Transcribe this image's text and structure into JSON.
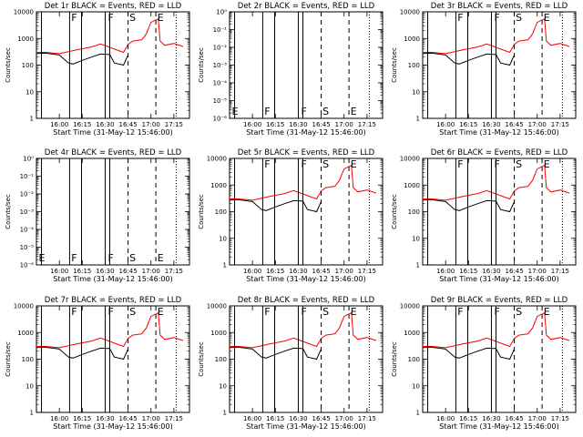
{
  "chart_data": [
    {
      "type": "line",
      "title": "Det 1r BLACK = Events, RED = LLD",
      "panel": 1,
      "empty": false,
      "ylabel": "Counts/sec",
      "xlabel": "Start Time (31-May-12 15:46:00)",
      "yscale": "log",
      "ylim": [
        1,
        10000
      ],
      "yticks": [
        "1",
        "10",
        "100",
        "1000",
        "10000"
      ],
      "xticks": [
        "16:00",
        "16:15",
        "16:30",
        "16:45",
        "17:00",
        "17:15"
      ],
      "markers": [
        "F",
        "F",
        "S",
        "E"
      ],
      "series": [
        {
          "color": "#ff0000",
          "x": [
            15.7,
            15.85,
            16.0,
            16.1,
            16.2,
            16.35,
            16.45,
            16.6,
            16.7,
            16.75,
            16.8,
            16.9,
            16.95,
            17.0,
            17.08,
            17.1,
            17.15,
            17.25,
            17.35
          ],
          "y": [
            300,
            300,
            270,
            320,
            380,
            480,
            620,
            400,
            300,
            600,
            800,
            900,
            1500,
            4000,
            5500,
            800,
            550,
            650,
            500
          ]
        },
        {
          "color": "#000000",
          "x": [
            15.7,
            15.85,
            16.0,
            16.1,
            16.15,
            16.25,
            16.35,
            16.45,
            16.55,
            16.6,
            16.7,
            16.75
          ],
          "y": [
            270,
            280,
            240,
            120,
            110,
            150,
            200,
            260,
            250,
            120,
            100,
            240
          ]
        }
      ]
    },
    {
      "type": "line",
      "title": "Det 2r BLACK = Events, RED = LLD",
      "panel": 2,
      "empty": true,
      "ylabel": "Counts/sec",
      "xlabel": "Start Time (31-May-12 15:46:00)",
      "yscale": "log",
      "ylim": [
        1e-06,
        1
      ],
      "yticks": [
        "10⁻⁶",
        "10⁻⁵",
        "10⁻⁴",
        "10⁻³",
        "10⁻²",
        "10⁻¹",
        "10⁰"
      ],
      "xticks": [
        "16:00",
        "16:15",
        "16:30",
        "16:45",
        "17:00",
        "17:15"
      ],
      "markers": [
        "E",
        "F",
        "F",
        "S",
        "E"
      ],
      "series": []
    },
    {
      "type": "line",
      "title": "Det 3r BLACK = Events, RED = LLD",
      "panel": 3,
      "empty": false,
      "ylabel": "Counts/sec",
      "xlabel": "Start Time (31-May-12 15:46:00)",
      "yscale": "log",
      "ylim": [
        1,
        10000
      ],
      "yticks": [
        "1",
        "10",
        "100",
        "1000",
        "10000"
      ],
      "xticks": [
        "16:00",
        "16:15",
        "16:30",
        "16:45",
        "17:00",
        "17:15"
      ],
      "markers": [
        "F",
        "F",
        "S",
        "E"
      ],
      "series": [
        {
          "color": "#ff0000",
          "x": [
            15.7,
            15.85,
            16.0,
            16.1,
            16.2,
            16.35,
            16.45,
            16.6,
            16.7,
            16.75,
            16.8,
            16.9,
            16.95,
            17.0,
            17.08,
            17.1,
            17.15,
            17.25,
            17.35
          ],
          "y": [
            300,
            300,
            270,
            320,
            380,
            480,
            620,
            400,
            300,
            600,
            800,
            900,
            1500,
            4000,
            5500,
            800,
            550,
            650,
            500
          ]
        },
        {
          "color": "#000000",
          "x": [
            15.7,
            15.85,
            16.0,
            16.1,
            16.15,
            16.25,
            16.35,
            16.45,
            16.55,
            16.6,
            16.7,
            16.75
          ],
          "y": [
            270,
            280,
            240,
            120,
            110,
            150,
            200,
            260,
            250,
            120,
            100,
            240
          ]
        }
      ]
    },
    {
      "type": "line",
      "title": "Det 4r BLACK = Events, RED = LLD",
      "panel": 4,
      "empty": true,
      "ylabel": "Counts/sec",
      "xlabel": "Start Time (31-May-12 15:46:00)",
      "yscale": "log",
      "ylim": [
        1e-06,
        1
      ],
      "yticks": [
        "10⁻⁶",
        "10⁻⁵",
        "10⁻⁴",
        "10⁻³",
        "10⁻²",
        "10⁻¹",
        "10⁰"
      ],
      "xticks": [
        "16:00",
        "16:15",
        "16:30",
        "16:45",
        "17:00",
        "17:15"
      ],
      "markers": [
        "E",
        "F",
        "F",
        "S",
        "E"
      ],
      "series": []
    },
    {
      "type": "line",
      "title": "Det 5r BLACK = Events, RED = LLD",
      "panel": 5,
      "empty": false,
      "ylabel": "Counts/sec",
      "xlabel": "Start Time (31-May-12 15:46:00)",
      "yscale": "log",
      "ylim": [
        1,
        10000
      ],
      "yticks": [
        "1",
        "10",
        "100",
        "1000",
        "10000"
      ],
      "xticks": [
        "16:00",
        "16:15",
        "16:30",
        "16:45",
        "17:00",
        "17:15"
      ],
      "markers": [
        "F",
        "F",
        "S",
        "E"
      ],
      "series": [
        {
          "color": "#ff0000",
          "x": [
            15.7,
            15.85,
            16.0,
            16.1,
            16.2,
            16.35,
            16.45,
            16.6,
            16.7,
            16.75,
            16.8,
            16.9,
            16.95,
            17.0,
            17.08,
            17.1,
            17.15,
            17.25,
            17.35
          ],
          "y": [
            300,
            300,
            270,
            320,
            380,
            480,
            620,
            400,
            300,
            600,
            800,
            900,
            1500,
            4000,
            5500,
            800,
            550,
            650,
            500
          ]
        },
        {
          "color": "#000000",
          "x": [
            15.7,
            15.85,
            16.0,
            16.1,
            16.15,
            16.25,
            16.35,
            16.45,
            16.55,
            16.6,
            16.7,
            16.75
          ],
          "y": [
            270,
            280,
            240,
            120,
            110,
            150,
            200,
            260,
            250,
            120,
            100,
            240
          ]
        }
      ]
    },
    {
      "type": "line",
      "title": "Det 6r BLACK = Events, RED = LLD",
      "panel": 6,
      "empty": false,
      "ylabel": "Counts/sec",
      "xlabel": "Start Time (31-May-12 15:46:00)",
      "yscale": "log",
      "ylim": [
        1,
        10000
      ],
      "yticks": [
        "1",
        "10",
        "100",
        "1000",
        "10000"
      ],
      "xticks": [
        "16:00",
        "16:15",
        "16:30",
        "16:45",
        "17:00",
        "17:15"
      ],
      "markers": [
        "F",
        "F",
        "S",
        "E"
      ],
      "series": [
        {
          "color": "#ff0000",
          "x": [
            15.7,
            15.85,
            16.0,
            16.1,
            16.2,
            16.35,
            16.45,
            16.6,
            16.7,
            16.75,
            16.8,
            16.9,
            16.95,
            17.0,
            17.08,
            17.1,
            17.15,
            17.25,
            17.35
          ],
          "y": [
            300,
            300,
            270,
            320,
            380,
            480,
            620,
            400,
            300,
            600,
            800,
            900,
            1500,
            4000,
            5500,
            800,
            550,
            650,
            500
          ]
        },
        {
          "color": "#000000",
          "x": [
            15.7,
            15.85,
            16.0,
            16.1,
            16.15,
            16.25,
            16.35,
            16.45,
            16.55,
            16.6,
            16.7,
            16.75
          ],
          "y": [
            270,
            280,
            240,
            120,
            110,
            150,
            200,
            260,
            250,
            120,
            100,
            240
          ]
        }
      ]
    },
    {
      "type": "line",
      "title": "Det 7r BLACK = Events, RED = LLD",
      "panel": 7,
      "empty": false,
      "ylabel": "Counts/sec",
      "xlabel": "Start Time (31-May-12 15:46:00)",
      "yscale": "log",
      "ylim": [
        1,
        10000
      ],
      "yticks": [
        "1",
        "10",
        "100",
        "1000",
        "10000"
      ],
      "xticks": [
        "16:00",
        "16:15",
        "16:30",
        "16:45",
        "17:00",
        "17:15"
      ],
      "markers": [
        "F",
        "F",
        "S",
        "E"
      ],
      "series": [
        {
          "color": "#ff0000",
          "x": [
            15.7,
            15.85,
            16.0,
            16.1,
            16.2,
            16.35,
            16.45,
            16.6,
            16.7,
            16.75,
            16.8,
            16.9,
            16.95,
            17.0,
            17.08,
            17.1,
            17.15,
            17.25,
            17.35
          ],
          "y": [
            300,
            300,
            270,
            320,
            380,
            480,
            620,
            400,
            300,
            600,
            800,
            900,
            1500,
            4000,
            5500,
            800,
            550,
            650,
            500
          ]
        },
        {
          "color": "#000000",
          "x": [
            15.7,
            15.85,
            16.0,
            16.1,
            16.15,
            16.25,
            16.35,
            16.45,
            16.55,
            16.6,
            16.7,
            16.75
          ],
          "y": [
            270,
            280,
            240,
            120,
            110,
            150,
            200,
            260,
            250,
            120,
            100,
            240
          ]
        }
      ]
    },
    {
      "type": "line",
      "title": "Det 8r BLACK = Events, RED = LLD",
      "panel": 8,
      "empty": false,
      "ylabel": "Counts/sec",
      "xlabel": "Start Time (31-May-12 15:46:00)",
      "yscale": "log",
      "ylim": [
        1,
        10000
      ],
      "yticks": [
        "1",
        "10",
        "100",
        "1000",
        "10000"
      ],
      "xticks": [
        "16:00",
        "16:15",
        "16:30",
        "16:45",
        "17:00",
        "17:15"
      ],
      "markers": [
        "F",
        "F",
        "S",
        "E"
      ],
      "series": [
        {
          "color": "#ff0000",
          "x": [
            15.7,
            15.85,
            16.0,
            16.1,
            16.2,
            16.35,
            16.45,
            16.6,
            16.7,
            16.75,
            16.8,
            16.9,
            16.95,
            17.0,
            17.08,
            17.1,
            17.15,
            17.25,
            17.35
          ],
          "y": [
            300,
            300,
            270,
            320,
            380,
            480,
            620,
            400,
            300,
            600,
            800,
            900,
            1500,
            4000,
            5500,
            800,
            550,
            650,
            500
          ]
        },
        {
          "color": "#000000",
          "x": [
            15.7,
            15.85,
            16.0,
            16.1,
            16.15,
            16.25,
            16.35,
            16.45,
            16.55,
            16.6,
            16.7,
            16.75
          ],
          "y": [
            270,
            280,
            240,
            120,
            110,
            150,
            200,
            260,
            250,
            120,
            100,
            240
          ]
        }
      ]
    },
    {
      "type": "line",
      "title": "Det 9r BLACK = Events, RED = LLD",
      "panel": 9,
      "empty": false,
      "ylabel": "Counts/sec",
      "xlabel": "Start Time (31-May-12 15:46:00)",
      "yscale": "log",
      "ylim": [
        1,
        10000
      ],
      "yticks": [
        "1",
        "10",
        "100",
        "1000",
        "10000"
      ],
      "xticks": [
        "16:00",
        "16:15",
        "16:30",
        "16:45",
        "17:00",
        "17:15"
      ],
      "markers": [
        "F",
        "F",
        "S",
        "E"
      ],
      "series": [
        {
          "color": "#ff0000",
          "x": [
            15.7,
            15.85,
            16.0,
            16.1,
            16.2,
            16.35,
            16.45,
            16.6,
            16.7,
            16.75,
            16.8,
            16.9,
            16.95,
            17.0,
            17.08,
            17.1,
            17.15,
            17.25,
            17.35
          ],
          "y": [
            300,
            300,
            270,
            320,
            380,
            480,
            620,
            400,
            300,
            600,
            800,
            900,
            1500,
            4000,
            5500,
            800,
            550,
            650,
            500
          ]
        },
        {
          "color": "#000000",
          "x": [
            15.7,
            15.85,
            16.0,
            16.1,
            16.15,
            16.25,
            16.35,
            16.45,
            16.55,
            16.6,
            16.7,
            16.75
          ],
          "y": [
            270,
            280,
            240,
            120,
            110,
            150,
            200,
            260,
            250,
            120,
            100,
            240
          ]
        }
      ]
    }
  ]
}
